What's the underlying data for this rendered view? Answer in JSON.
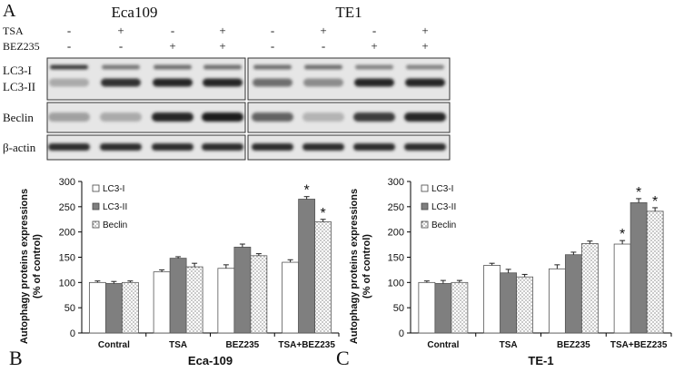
{
  "panel_labels": {
    "a": "A",
    "b": "B",
    "c": "C"
  },
  "blot": {
    "cell_lines": [
      "Eca109",
      "TE1"
    ],
    "treatment_rows": [
      {
        "label": "TSA",
        "marks": [
          "-",
          "+",
          "-",
          "+",
          "-",
          "+",
          "-",
          "+"
        ]
      },
      {
        "label": "BEZ235",
        "marks": [
          "-",
          "-",
          "+",
          "+",
          "-",
          "-",
          "+",
          "+"
        ]
      }
    ],
    "band_labels": {
      "lc3_i": "LC3-I",
      "lc3_ii": "LC3-II",
      "beclin": "Beclin",
      "actin": "β-actin"
    }
  },
  "chart_data": [
    {
      "type": "bar",
      "title": "Eca-109",
      "xlabel": "",
      "ylabel": "Autophagy proteins expressions (% of control)",
      "ylabel_lines": [
        "Autophagy proteins expressions",
        "(% of control)"
      ],
      "categories": [
        "Contral",
        "TSA",
        "BEZ235",
        "TSA+BEZ235"
      ],
      "ylim": [
        0,
        300
      ],
      "yticks": [
        0,
        50,
        100,
        150,
        200,
        250,
        300
      ],
      "legend_position": "top-left",
      "series": [
        {
          "name": "LC3-I",
          "values": [
            100,
            121,
            128,
            140
          ],
          "errors": [
            3,
            4,
            7,
            5
          ],
          "fill": "#ffffff"
        },
        {
          "name": "LC3-II",
          "values": [
            98,
            148,
            170,
            265
          ],
          "errors": [
            4,
            3,
            6,
            5
          ],
          "fill": "#7f7f7f"
        },
        {
          "name": "Beclin",
          "values": [
            100,
            131,
            153,
            220
          ],
          "errors": [
            3,
            7,
            4,
            5
          ],
          "fill": "#ffffff",
          "pattern": "dots"
        }
      ],
      "significance": [
        {
          "category": "TSA+BEZ235",
          "series": "LC3-II",
          "mark": "*"
        },
        {
          "category": "TSA+BEZ235",
          "series": "Beclin",
          "mark": "*"
        }
      ]
    },
    {
      "type": "bar",
      "title": "TE-1",
      "xlabel": "",
      "ylabel": "Autophagy proteins expressions (% of control)",
      "ylabel_lines": [
        "Autophagy proteins expressions",
        "(% of control)"
      ],
      "categories": [
        "Contral",
        "TSA",
        "BEZ235",
        "TSA+BEZ235"
      ],
      "ylim": [
        0,
        300
      ],
      "yticks": [
        0,
        50,
        100,
        150,
        200,
        250,
        300
      ],
      "legend_position": "top-left",
      "series": [
        {
          "name": "LC3-I",
          "values": [
            100,
            134,
            127,
            176
          ],
          "errors": [
            3,
            4,
            8,
            7
          ],
          "fill": "#ffffff"
        },
        {
          "name": "LC3-II",
          "values": [
            98,
            119,
            155,
            258
          ],
          "errors": [
            6,
            7,
            5,
            8
          ],
          "fill": "#7f7f7f"
        },
        {
          "name": "Beclin",
          "values": [
            100,
            111,
            177,
            241
          ],
          "errors": [
            4,
            5,
            5,
            7
          ],
          "fill": "#ffffff",
          "pattern": "dots"
        }
      ],
      "significance": [
        {
          "category": "TSA+BEZ235",
          "series": "LC3-I",
          "mark": "*"
        },
        {
          "category": "TSA+BEZ235",
          "series": "LC3-II",
          "mark": "*"
        },
        {
          "category": "TSA+BEZ235",
          "series": "Beclin",
          "mark": "*"
        }
      ]
    }
  ]
}
